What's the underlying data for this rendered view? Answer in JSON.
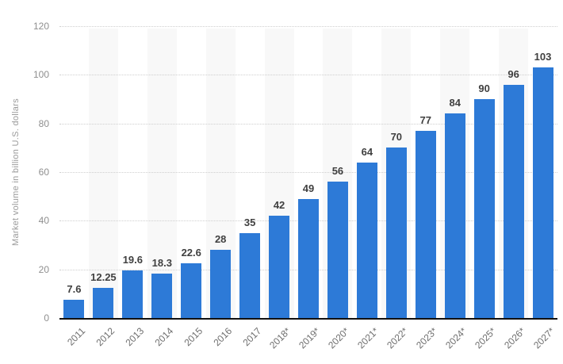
{
  "page": {
    "background": "#ffffff"
  },
  "chart_data": {
    "type": "bar",
    "title": "",
    "xlabel": "",
    "ylabel": "Market volume in billion U.S. dollars",
    "categories": [
      "2011",
      "2012",
      "2013",
      "2014",
      "2015",
      "2016",
      "2017",
      "2018*",
      "2019*",
      "2020*",
      "2021*",
      "2022*",
      "2023*",
      "2024*",
      "2025*",
      "2026*",
      "2027*"
    ],
    "values": [
      7.6,
      12.25,
      19.6,
      18.3,
      22.6,
      28,
      35,
      42,
      49,
      56,
      64,
      70,
      77,
      84,
      90,
      96,
      103
    ],
    "value_labels": [
      "7.6",
      "12.25",
      "19.6",
      "18.3",
      "22.6",
      "28",
      "35",
      "42",
      "49",
      "56",
      "64",
      "70",
      "77",
      "84",
      "90",
      "96",
      "103"
    ],
    "ylim": [
      0,
      120
    ],
    "yticks": [
      0,
      20,
      40,
      60,
      80,
      100,
      120
    ],
    "grid": "horizontal-dotted",
    "legend": "none",
    "striped_background": "alternating columns (2012, 2014, 2016, 2018, 2020, 2022, 2024, 2026 shaded)",
    "colors": {
      "bar": "#2d7ad7",
      "stripe": "#f8f8f8",
      "gridline": "#cfcfcf",
      "axis_line": "#111111",
      "tick_label": "#8f8f8f",
      "value_label": "#404040",
      "x_label": "#6e6e6e",
      "y_title": "#9a9a9a"
    }
  }
}
